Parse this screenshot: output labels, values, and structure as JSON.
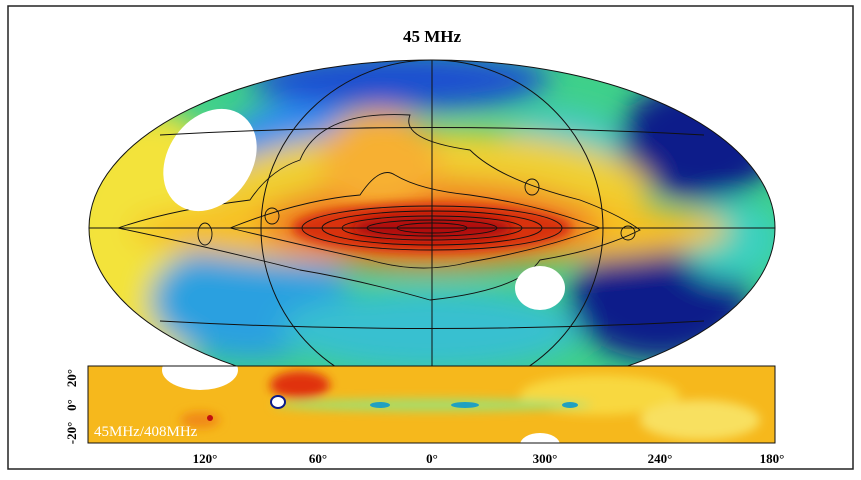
{
  "title": "45 MHz",
  "strip": {
    "label": "45MHz/408MHz",
    "xticks": [
      "120°",
      "60°",
      "0°",
      "300°",
      "240°",
      "180°"
    ],
    "yticks": [
      "20°",
      "0°",
      "-20°"
    ]
  }
}
